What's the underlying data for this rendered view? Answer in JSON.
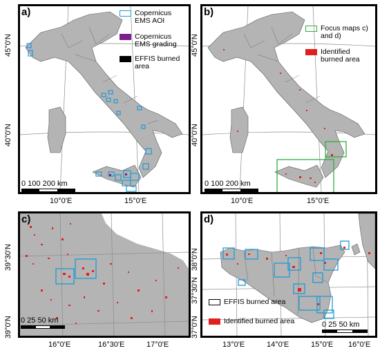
{
  "panels": {
    "a": {
      "label": "a)",
      "legend": [
        {
          "label": "Copernicus EMS AOI",
          "swatch": "outline",
          "color": "#1e9ad6"
        },
        {
          "label": "Copernicus EMS grading",
          "swatch": "fill",
          "color": "#7b1f8f"
        },
        {
          "label": "EFFIS burned area",
          "swatch": "fill",
          "color": "#000000"
        }
      ],
      "lat_ticks": [
        "45°0'N",
        "40°0'N"
      ],
      "lon_ticks": [
        "10°0'E",
        "15°0'E"
      ],
      "scale": "0    100  200 km"
    },
    "b": {
      "label": "b)",
      "legend": [
        {
          "label": "Focus maps c) and d)",
          "swatch": "outline",
          "color": "#2fae3b"
        },
        {
          "label": "Identified burned area",
          "swatch": "fill",
          "color": "#e0201f"
        }
      ],
      "lat_ticks": [
        "45°0'N",
        "40°0'N"
      ],
      "lon_ticks": [
        "10°0'E",
        "15°0'E"
      ],
      "scale": "0    100  200 km"
    },
    "c": {
      "label": "c)",
      "lat_ticks": [
        "39°30'N",
        "39°0'N"
      ],
      "lon_ticks": [
        "16°0'E",
        "16°30'E",
        "17°0'E"
      ],
      "scale": "0   25  50 km"
    },
    "d": {
      "label": "d)",
      "legend": [
        {
          "label": "EFFIS burned area",
          "swatch": "outline",
          "color": "#000000"
        },
        {
          "label": "Identified burned area",
          "swatch": "fill",
          "color": "#e0201f"
        }
      ],
      "lat_ticks": [
        "38°0'N",
        "37°30'N",
        "37°0'N"
      ],
      "lon_ticks": [
        "13°0'E",
        "14°0'E",
        "15°0'E",
        "16°0'E"
      ],
      "scale": "0   25  50 km"
    }
  },
  "colors": {
    "land": "#b4b4b4",
    "border": "#5a5a5a",
    "grid": "#8c8c8c",
    "aoi": "#1e9ad6",
    "focus": "#2fae3b",
    "burn": "#e0201f"
  }
}
